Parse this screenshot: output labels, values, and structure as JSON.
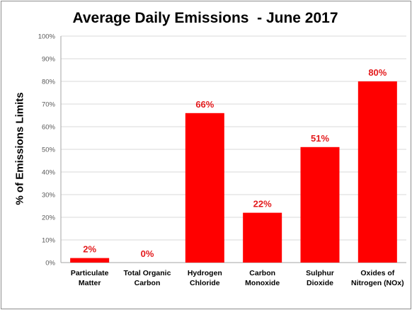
{
  "chart_data": {
    "type": "bar",
    "title": "Average Daily Emissions  - June 2017",
    "xlabel": "",
    "ylabel": "% of Emissions Limits",
    "categories": [
      [
        "Particulate",
        "Matter"
      ],
      [
        "Total Organic",
        "Carbon"
      ],
      [
        "Hydrogen",
        "Chloride"
      ],
      [
        "Carbon",
        "Monoxide"
      ],
      [
        "Sulphur",
        "Dioxide"
      ],
      [
        "Oxides of",
        "Nitrogen (NOx)"
      ]
    ],
    "values": [
      2,
      0,
      66,
      22,
      51,
      80
    ],
    "data_labels": [
      "2%",
      "0%",
      "66%",
      "22%",
      "51%",
      "80%"
    ],
    "ylim": [
      0,
      100
    ],
    "yticks": [
      "0%",
      "10%",
      "20%",
      "30%",
      "40%",
      "50%",
      "60%",
      "70%",
      "80%",
      "90%",
      "100%"
    ],
    "grid": true,
    "legend": "none",
    "colors": {
      "bar": "#ff0000",
      "data_label": "#e31a1c",
      "gridline": "#d9d9d9",
      "axis": "#a6a6a6"
    }
  }
}
